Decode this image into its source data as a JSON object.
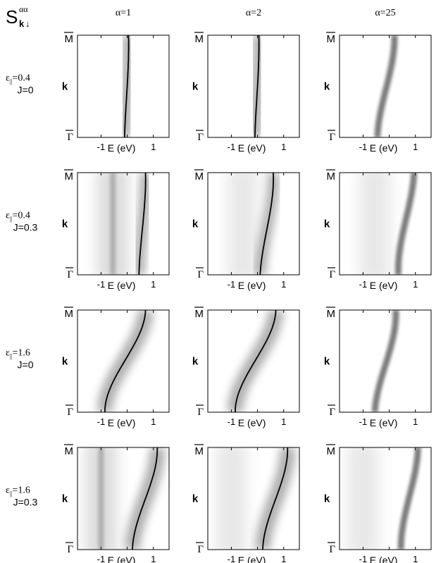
{
  "figure": {
    "quantity_main": "S",
    "quantity_sup": "αα",
    "quantity_sub_k": "k",
    "quantity_sub_spin": "↓",
    "columns": [
      {
        "label": "α=1",
        "alpha": 1
      },
      {
        "label": "α=2",
        "alpha": 2
      },
      {
        "label": "α=25",
        "alpha": 25
      }
    ],
    "rows": [
      {
        "eps_sym": "ε",
        "eps_sub": "||",
        "eps_val": "=0.4",
        "j_label": "J=0",
        "eps": 0.4,
        "J": 0
      },
      {
        "eps_sym": "ε",
        "eps_sub": "||",
        "eps_val": "=0.4",
        "j_label": "J=0.3",
        "eps": 0.4,
        "J": 0.3
      },
      {
        "eps_sym": "ε",
        "eps_sub": "||",
        "eps_val": "=1.6",
        "j_label": "J=0",
        "eps": 1.6,
        "J": 0
      },
      {
        "eps_sym": "ε",
        "eps_sub": "||",
        "eps_val": "=1.6",
        "j_label": "J=0.3",
        "eps": 1.6,
        "J": 0.3
      }
    ],
    "y_axis": {
      "label": "k",
      "top_tick": "M",
      "bottom_tick": "Γ"
    },
    "x_axis": {
      "label": "E (eV)",
      "ticks": [
        {
          "value": -1,
          "label": "-1"
        },
        {
          "value": 1,
          "label": "1"
        }
      ]
    }
  },
  "chart_data": {
    "type": "heatmap",
    "description_of_grid": "4 rows × 3 columns of intensity maps, energy vs k along Γ–M",
    "xlabel": "E (eV)",
    "ylabel": "k",
    "xlim": [
      -1.9,
      1.6
    ],
    "ylim": [
      "Γ",
      "M"
    ],
    "colormap": "white-to-black (gray scale)",
    "panels": [
      {
        "row": 0,
        "col": 0,
        "alpha": 1,
        "eps": 0.4,
        "J": 0,
        "band_E_at_Gamma": -0.1,
        "band_E_at_M": 0.05,
        "band_E_mid": 0.0,
        "broad_halfwidth": 0.25,
        "sharp_line": true,
        "side_band_E": null
      },
      {
        "row": 0,
        "col": 1,
        "alpha": 2,
        "eps": 0.4,
        "J": 0,
        "band_E_at_Gamma": -0.1,
        "band_E_at_M": 0.05,
        "band_E_mid": 0.0,
        "broad_halfwidth": 0.25,
        "sharp_line": true,
        "side_band_E": null
      },
      {
        "row": 0,
        "col": 2,
        "alpha": 25,
        "eps": 0.4,
        "J": 0,
        "band_E_at_Gamma": -0.45,
        "band_E_at_M": 0.2,
        "band_E_mid": -0.1,
        "broad_halfwidth": 0.12,
        "sharp_line": false,
        "side_band_E": null
      },
      {
        "row": 1,
        "col": 0,
        "alpha": 1,
        "eps": 0.4,
        "J": 0.3,
        "band_E_at_Gamma": 0.45,
        "band_E_at_M": 0.7,
        "band_E_mid": 0.6,
        "broad_halfwidth": 0.22,
        "sharp_line": true,
        "side_band_E": -0.55
      },
      {
        "row": 1,
        "col": 1,
        "alpha": 2,
        "eps": 0.4,
        "J": 0.3,
        "band_E_at_Gamma": 0.1,
        "band_E_at_M": 0.6,
        "band_E_mid": 0.4,
        "broad_halfwidth": 0.22,
        "sharp_line": true,
        "side_band_E": -0.55
      },
      {
        "row": 1,
        "col": 2,
        "alpha": 25,
        "eps": 0.4,
        "J": 0.3,
        "band_E_at_Gamma": 0.35,
        "band_E_at_M": 0.95,
        "band_E_mid": 0.6,
        "broad_halfwidth": 0.12,
        "sharp_line": false,
        "side_band_E": -0.55
      },
      {
        "row": 2,
        "col": 0,
        "alpha": 1,
        "eps": 1.6,
        "J": 0,
        "band_E_at_Gamma": -0.85,
        "band_E_at_M": 0.7,
        "band_E_mid": -0.1,
        "broad_halfwidth": 0.3,
        "sharp_line": true,
        "side_band_E": null
      },
      {
        "row": 2,
        "col": 1,
        "alpha": 2,
        "eps": 1.6,
        "J": 0,
        "band_E_at_Gamma": -0.85,
        "band_E_at_M": 0.7,
        "band_E_mid": -0.1,
        "broad_halfwidth": 0.3,
        "sharp_line": true,
        "side_band_E": null
      },
      {
        "row": 2,
        "col": 2,
        "alpha": 25,
        "eps": 1.6,
        "J": 0,
        "band_E_at_Gamma": -0.55,
        "band_E_at_M": 0.25,
        "band_E_mid": -0.1,
        "broad_halfwidth": 0.12,
        "sharp_line": false,
        "side_band_E": null
      },
      {
        "row": 3,
        "col": 0,
        "alpha": 1,
        "eps": 1.6,
        "J": 0.3,
        "band_E_at_Gamma": 0.2,
        "band_E_at_M": 1.15,
        "band_E_mid": 0.7,
        "broad_halfwidth": 0.3,
        "sharp_line": true,
        "side_band_E": -1.0
      },
      {
        "row": 3,
        "col": 1,
        "alpha": 2,
        "eps": 1.6,
        "J": 0.3,
        "band_E_at_Gamma": 0.2,
        "band_E_at_M": 1.15,
        "band_E_mid": 0.7,
        "broad_halfwidth": 0.3,
        "sharp_line": true,
        "side_band_E": -1.0
      },
      {
        "row": 3,
        "col": 2,
        "alpha": 25,
        "eps": 1.6,
        "J": 0.3,
        "band_E_at_Gamma": 0.45,
        "band_E_at_M": 1.1,
        "band_E_mid": 0.75,
        "broad_halfwidth": 0.12,
        "sharp_line": false,
        "side_band_E": -1.0
      }
    ]
  }
}
